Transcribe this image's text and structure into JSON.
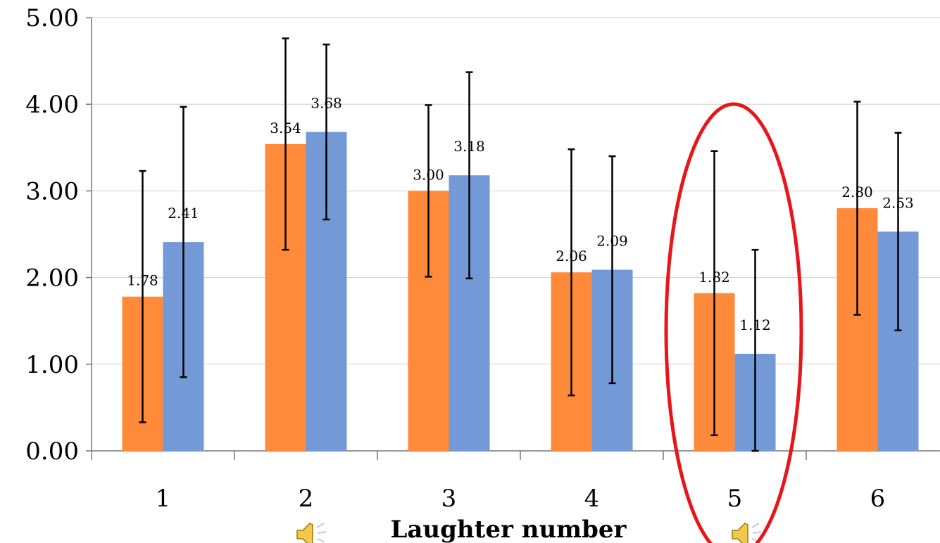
{
  "chart_data": {
    "type": "bar",
    "categories": [
      "1",
      "2",
      "3",
      "4",
      "5",
      "6"
    ],
    "series": [
      {
        "values": [
          1.78,
          3.54,
          3.0,
          2.06,
          1.82,
          2.8
        ],
        "labels": [
          "1.78",
          "3.54",
          "3.00",
          "2.06",
          "1.82",
          "2.80"
        ],
        "error": [
          1.45,
          1.22,
          0.99,
          1.42,
          1.64,
          1.23
        ],
        "color": "#FF8A3A"
      },
      {
        "values": [
          2.41,
          3.68,
          3.18,
          2.09,
          1.12,
          2.53
        ],
        "labels": [
          "2.41",
          "3.68",
          "3.18",
          "2.09",
          "1.12",
          "2.53"
        ],
        "error": [
          1.56,
          1.01,
          1.19,
          1.31,
          1.2,
          1.14
        ],
        "color": "#7399D6"
      }
    ],
    "y_ticks": [
      "0.00",
      "1.00",
      "2.00",
      "3.00",
      "4.00",
      "5.00"
    ],
    "ylim": [
      0,
      5
    ],
    "xlabel": "Laughter number",
    "ylabel": "",
    "grid": true,
    "highlight": {
      "category": "5",
      "color": "#E8161B"
    },
    "icons": [
      "speaker-icon",
      "speaker-icon"
    ]
  }
}
